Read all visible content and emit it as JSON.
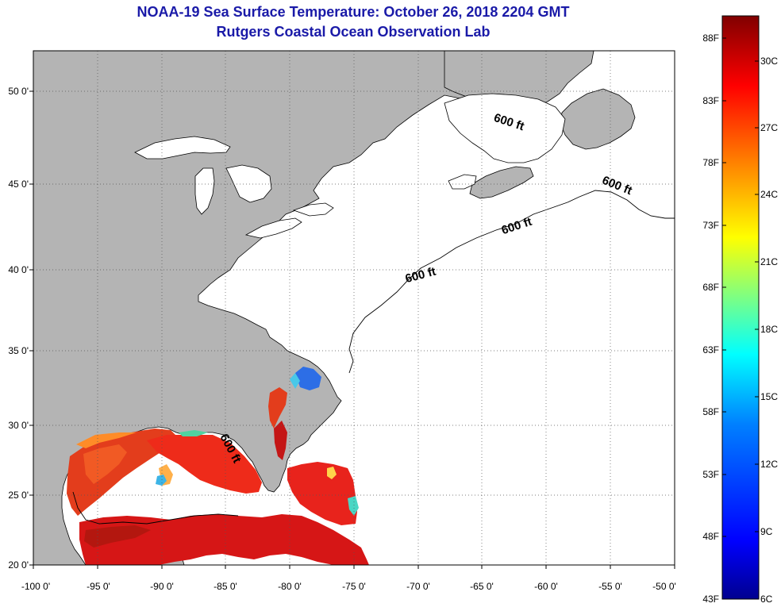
{
  "title": {
    "line1": "NOAA-19 Sea Surface Temperature:  October 26, 2018 2204 GMT",
    "line2": "Rutgers Coastal Ocean Observation Lab"
  },
  "map": {
    "lon_range": [
      -100,
      -50
    ],
    "lat_range": [
      20,
      52
    ],
    "lon_ticks": [
      "-100 0'",
      "-95 0'",
      "-90 0'",
      "-85 0'",
      "-80 0'",
      "-75 0'",
      "-70 0'",
      "-65 0'",
      "-60 0'",
      "-55 0'",
      "-50 0'"
    ],
    "lat_ticks": [
      "20 0'",
      "25 0'",
      "30 0'",
      "35 0'",
      "40 0'",
      "45 0'",
      "50 0'"
    ],
    "land_color": "#b4b4b4",
    "ocean_color": "#ffffff",
    "contour_labels": [
      "600 ft",
      "600 ft",
      "600 ft",
      "600 ft",
      "600 ft"
    ]
  },
  "colorbar": {
    "fahrenheit_labels": [
      "88F",
      "83F",
      "78F",
      "73F",
      "68F",
      "63F",
      "58F",
      "53F",
      "48F",
      "43F"
    ],
    "celsius_labels": [
      "30C",
      "27C",
      "24C",
      "21C",
      "18C",
      "15C",
      "12C",
      "9C",
      "6C"
    ],
    "colors": [
      "#00008f",
      "#0000ff",
      "#0080ff",
      "#00ffff",
      "#80ff80",
      "#ffff00",
      "#ff8000",
      "#ff0000",
      "#800000"
    ]
  }
}
